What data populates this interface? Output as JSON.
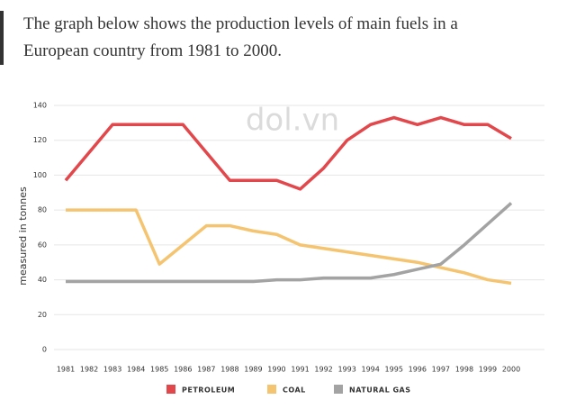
{
  "paragraph_lines": [
    "The graph below shows the production levels of main fuels in a",
    "European country from 1981 to 2000."
  ],
  "chart_data": {
    "type": "line",
    "watermark": "dol.vn",
    "y_label": "measured in tonnes",
    "categories": [
      "1981",
      "1982",
      "1983",
      "1984",
      "1985",
      "1986",
      "1987",
      "1988",
      "1989",
      "1990",
      "1991",
      "1992",
      "1993",
      "1994",
      "1995",
      "1996",
      "1997",
      "1998",
      "1999",
      "2000"
    ],
    "series": [
      {
        "name": "PETROLEUM",
        "color": "#e2474b",
        "values": [
          97,
          113,
          129,
          129,
          129,
          129,
          113,
          97,
          97,
          97,
          92,
          104,
          120,
          129,
          133,
          129,
          133,
          129,
          129,
          121
        ]
      },
      {
        "name": "COAL",
        "color": "#f5c470",
        "values": [
          80,
          80,
          80,
          80,
          49,
          60,
          71,
          71,
          68,
          66,
          60,
          58,
          56,
          54,
          52,
          50,
          47,
          44,
          40,
          38
        ]
      },
      {
        "name": "NATURAL GAS",
        "color": "#a3a3a3",
        "values": [
          39,
          39,
          39,
          39,
          39,
          39,
          39,
          39,
          39,
          40,
          40,
          41,
          41,
          41,
          43,
          46,
          49,
          60,
          72,
          84
        ]
      }
    ],
    "ylim": [
      0,
      140
    ],
    "yticks": [
      0,
      20,
      40,
      60,
      80,
      100,
      120,
      140
    ],
    "grid": true
  }
}
